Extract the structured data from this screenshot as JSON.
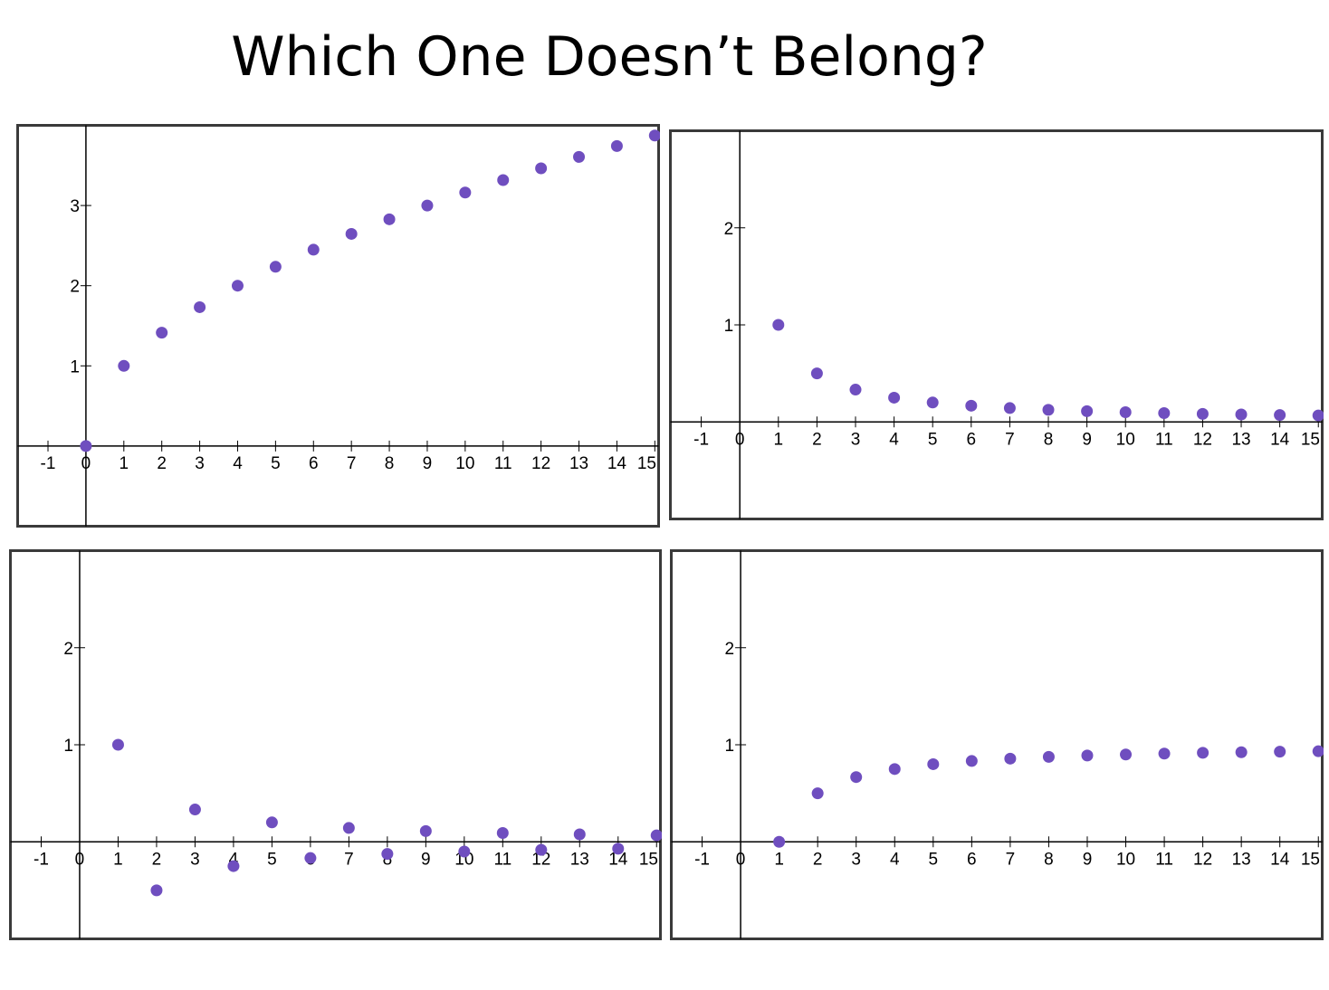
{
  "slide": {
    "title": "Which One Doesn’t Belong?"
  },
  "point_color": "#6f4ebf",
  "chart_data": [
    {
      "type": "scatter",
      "x": [
        0,
        1,
        2,
        3,
        4,
        5,
        6,
        7,
        8,
        9,
        10,
        11,
        12,
        13,
        14,
        15
      ],
      "y": [
        0,
        1,
        1.414,
        1.732,
        2,
        2.236,
        2.449,
        2.646,
        2.828,
        3,
        3.162,
        3.317,
        3.464,
        3.606,
        3.742,
        3.873
      ],
      "x_ticks": [
        "-1",
        "0",
        "1",
        "2",
        "3",
        "4",
        "5",
        "6",
        "7",
        "8",
        "9",
        "10",
        "11",
        "12",
        "13",
        "14",
        "15"
      ],
      "y_ticks": [
        "1",
        "2",
        "3"
      ],
      "xlim": [
        -1.8,
        15.1
      ],
      "ylim": [
        -1,
        4
      ],
      "grid": false
    },
    {
      "type": "scatter",
      "x": [
        1,
        2,
        3,
        4,
        5,
        6,
        7,
        8,
        9,
        10,
        11,
        12,
        13,
        14,
        15
      ],
      "y": [
        1,
        0.5,
        0.333,
        0.25,
        0.2,
        0.167,
        0.143,
        0.125,
        0.111,
        0.1,
        0.091,
        0.083,
        0.077,
        0.071,
        0.067
      ],
      "x_ticks": [
        "-1",
        "0",
        "1",
        "2",
        "3",
        "4",
        "5",
        "6",
        "7",
        "8",
        "9",
        "10",
        "11",
        "12",
        "13",
        "14",
        "15"
      ],
      "y_ticks": [
        "1",
        "2"
      ],
      "xlim": [
        -1.8,
        15.1
      ],
      "ylim": [
        -1,
        3
      ],
      "grid": false
    },
    {
      "type": "scatter",
      "x": [
        1,
        2,
        3,
        4,
        5,
        6,
        7,
        8,
        9,
        10,
        11,
        12,
        13,
        14,
        15
      ],
      "y": [
        1,
        -0.5,
        0.333,
        -0.25,
        0.2,
        -0.167,
        0.143,
        -0.125,
        0.111,
        -0.1,
        0.091,
        -0.083,
        0.077,
        -0.071,
        0.067
      ],
      "x_ticks": [
        "-1",
        "0",
        "1",
        "2",
        "3",
        "4",
        "5",
        "6",
        "7",
        "8",
        "9",
        "10",
        "11",
        "12",
        "13",
        "14",
        "15"
      ],
      "y_ticks": [
        "1",
        "2"
      ],
      "xlim": [
        -1.8,
        15.1
      ],
      "ylim": [
        -1,
        3
      ],
      "grid": false
    },
    {
      "type": "scatter",
      "x": [
        1,
        2,
        3,
        4,
        5,
        6,
        7,
        8,
        9,
        10,
        11,
        12,
        13,
        14,
        15
      ],
      "y": [
        0,
        0.5,
        0.667,
        0.75,
        0.8,
        0.833,
        0.857,
        0.875,
        0.889,
        0.9,
        0.909,
        0.917,
        0.923,
        0.929,
        0.933
      ],
      "x_ticks": [
        "-1",
        "0",
        "1",
        "2",
        "3",
        "4",
        "5",
        "6",
        "7",
        "8",
        "9",
        "10",
        "11",
        "12",
        "13",
        "14",
        "15"
      ],
      "y_ticks": [
        "1",
        "2"
      ],
      "xlim": [
        -1.8,
        15.1
      ],
      "ylim": [
        -1,
        3
      ],
      "grid": false
    }
  ]
}
